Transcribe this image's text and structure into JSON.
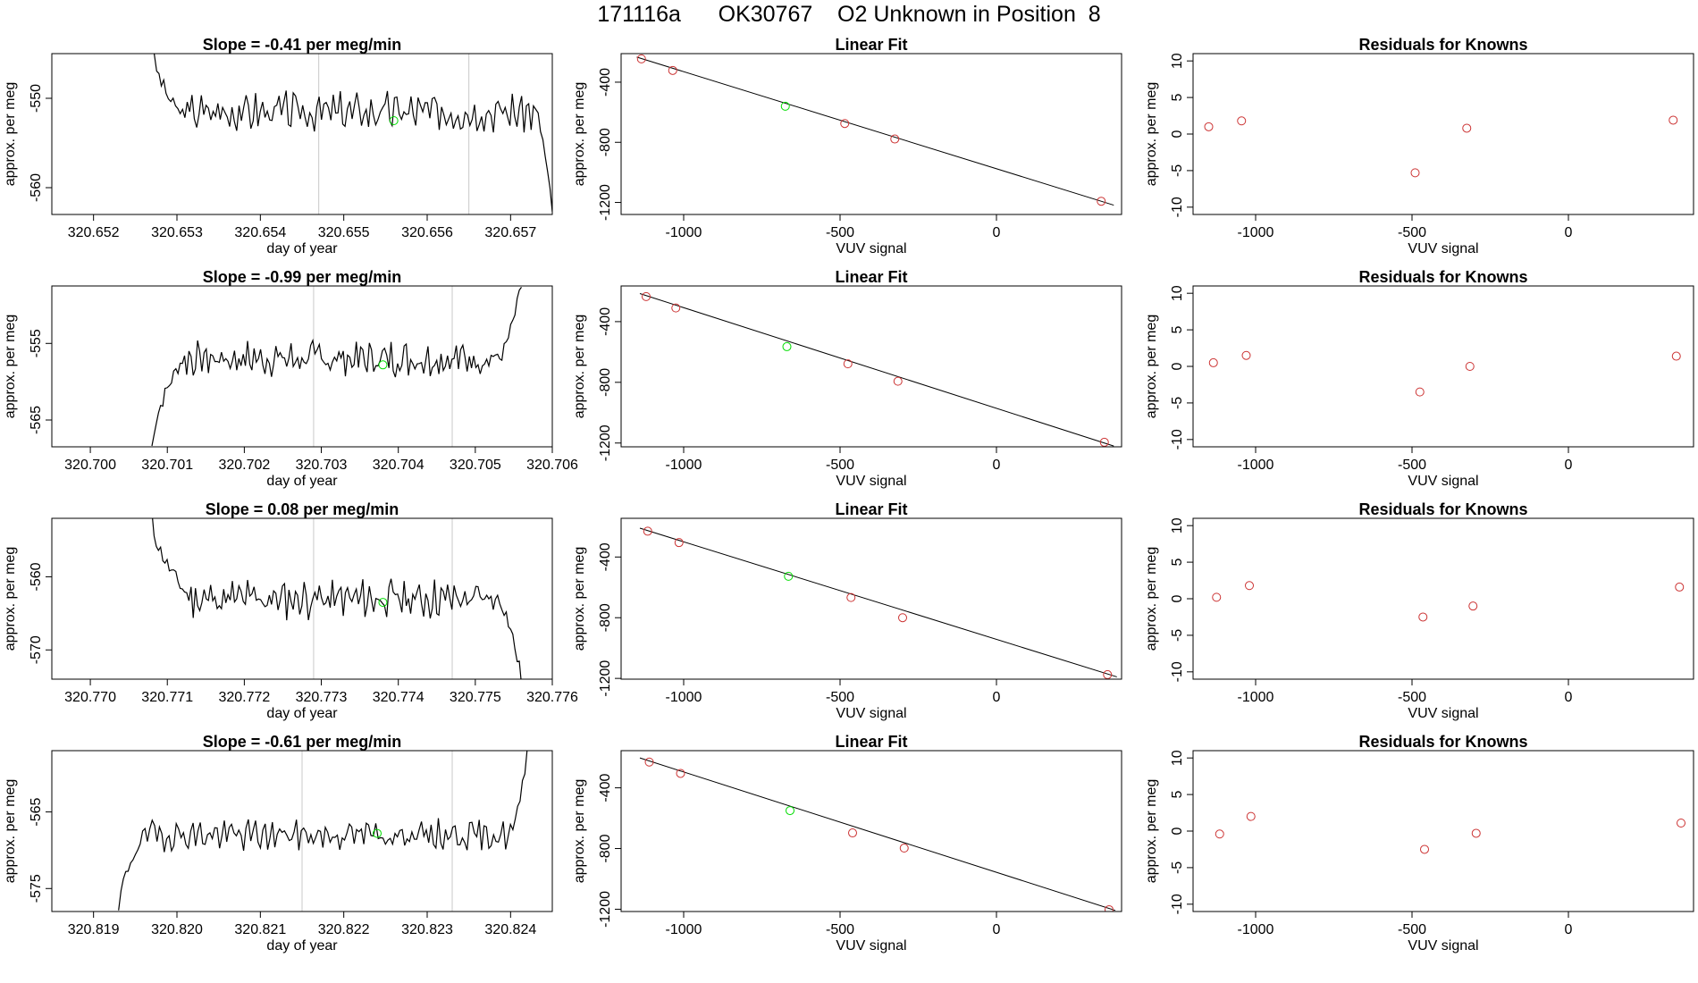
{
  "page": {
    "title": "171116a      OK30767    O2 Unknown in Position  8"
  },
  "colors": {
    "trace": "#000000",
    "unknown": "#00dd00",
    "known": "#cc3333",
    "gridline": "#c8c8c8",
    "fitline": "#000000"
  },
  "chart_data": [
    {
      "type": "line",
      "row": 0,
      "title": "Slope =  -0.41  per meg/min",
      "xlabel": "day of year",
      "ylabel": "approx. per meg",
      "xlim": [
        320.6515,
        320.6575
      ],
      "ylim": [
        -563,
        -545
      ],
      "xticks": [
        320.652,
        320.653,
        320.654,
        320.655,
        320.656,
        320.657
      ],
      "xtick_labels": [
        "320.652",
        "320.653",
        "320.654",
        "320.655",
        "320.656",
        "320.657"
      ],
      "yticks": [
        -550,
        -560
      ],
      "ytick_labels": [
        "-550",
        "-560"
      ],
      "vlines": [
        320.6547,
        320.6565
      ],
      "unknown_point": [
        320.6556,
        -552.5
      ],
      "trace": {
        "start": 320.6527,
        "end": 320.6575,
        "rise_end": 320.653,
        "level": -551.5,
        "amplitude": 1.8,
        "seed": 3,
        "start_value": -544,
        "end_value": -563,
        "fall_start": 320.6573
      }
    },
    {
      "type": "line",
      "row": 1,
      "title": "Slope =  -0.99  per meg/min",
      "xlabel": "day of year",
      "ylabel": "approx. per meg",
      "xlim": [
        320.6995,
        320.706
      ],
      "ylim": [
        -568.5,
        -547.5
      ],
      "xticks": [
        320.7,
        320.701,
        320.702,
        320.703,
        320.704,
        320.705,
        320.706
      ],
      "xtick_labels": [
        "320.700",
        "320.701",
        "320.702",
        "320.703",
        "320.704",
        "320.705",
        "320.706"
      ],
      "yticks": [
        -555,
        -565
      ],
      "ytick_labels": [
        "-555",
        "-565"
      ],
      "vlines": [
        320.7029,
        320.7047
      ],
      "unknown_point": [
        320.7038,
        -557.8
      ],
      "trace": {
        "start": 320.7008,
        "end": 320.7056,
        "rise_end": 320.7012,
        "level": -557,
        "amplitude": 2.0,
        "seed": 7,
        "start_value": -568.5,
        "end_value": -547.5,
        "fall_start": 320.7053
      }
    },
    {
      "type": "line",
      "row": 2,
      "title": "Slope =  0.08  per meg/min",
      "xlabel": "day of year",
      "ylabel": "approx. per meg",
      "xlim": [
        320.7695,
        320.776
      ],
      "ylim": [
        -574,
        -552
      ],
      "xticks": [
        320.77,
        320.771,
        320.772,
        320.773,
        320.774,
        320.775,
        320.776
      ],
      "xtick_labels": [
        "320.770",
        "320.771",
        "320.772",
        "320.773",
        "320.774",
        "320.775",
        "320.776"
      ],
      "yticks": [
        -560,
        -570
      ],
      "ytick_labels": [
        "-560",
        "-570"
      ],
      "vlines": [
        320.7729,
        320.7747
      ],
      "unknown_point": [
        320.7738,
        -563.5
      ],
      "trace": {
        "start": 320.7708,
        "end": 320.7756,
        "rise_end": 320.7713,
        "level": -563,
        "amplitude": 2.2,
        "seed": 11,
        "start_value": -552,
        "end_value": -574,
        "fall_start": 320.7753
      }
    },
    {
      "type": "line",
      "row": 3,
      "title": "Slope =  -0.61  per meg/min",
      "xlabel": "day of year",
      "ylabel": "approx. per meg",
      "xlim": [
        320.8185,
        320.8245
      ],
      "ylim": [
        -578,
        -557
      ],
      "xticks": [
        320.819,
        320.82,
        320.821,
        320.822,
        320.823,
        320.824
      ],
      "xtick_labels": [
        "320.819",
        "320.820",
        "320.821",
        "320.822",
        "320.823",
        "320.824"
      ],
      "yticks": [
        -565,
        -575
      ],
      "ytick_labels": [
        "-565",
        "-575"
      ],
      "vlines": [
        320.8215,
        320.8233
      ],
      "unknown_point": [
        320.8224,
        -567.8
      ],
      "trace": {
        "start": 320.8193,
        "end": 320.8242,
        "rise_end": 320.8196,
        "level": -568,
        "amplitude": 1.6,
        "seed": 19,
        "start_value": -578,
        "end_value": -557,
        "fall_start": 320.824
      }
    },
    {
      "type": "scatter",
      "row": 0,
      "title": "Linear Fit",
      "xlabel": "VUV signal",
      "ylabel": "approx. per meg",
      "xlim": [
        -1200,
        400
      ],
      "ylim": [
        -1280,
        -210
      ],
      "xticks": [
        -1000,
        -500,
        0
      ],
      "xtick_labels": [
        "-1000",
        "-500",
        "0"
      ],
      "yticks": [
        -400,
        -800,
        -1200
      ],
      "ytick_labels": [
        "-400",
        "-800",
        "-1200"
      ],
      "known_points": [
        [
          -1135,
          -245
        ],
        [
          -1035,
          -322
        ],
        [
          -485,
          -675
        ],
        [
          -325,
          -778
        ],
        [
          335,
          -1192
        ]
      ],
      "unknown_point": [
        -675,
        -560
      ],
      "fit_line": [
        [
          -1150,
          -233
        ],
        [
          375,
          -1218
        ]
      ]
    },
    {
      "type": "scatter",
      "row": 1,
      "title": "Linear Fit",
      "xlabel": "VUV signal",
      "ylabel": "approx. per meg",
      "xlim": [
        -1200,
        400
      ],
      "ylim": [
        -1225,
        -165
      ],
      "xticks": [
        -1000,
        -500,
        0
      ],
      "xtick_labels": [
        "-1000",
        "-500",
        "0"
      ],
      "yticks": [
        -400,
        -800,
        -1200
      ],
      "ytick_labels": [
        "-400",
        "-800",
        "-1200"
      ],
      "known_points": [
        [
          -1120,
          -235
        ],
        [
          -1025,
          -310
        ],
        [
          -475,
          -678
        ],
        [
          -315,
          -793
        ],
        [
          345,
          -1195
        ]
      ],
      "unknown_point": [
        -670,
        -565
      ],
      "fit_line": [
        [
          -1140,
          -215
        ],
        [
          375,
          -1220
        ]
      ]
    },
    {
      "type": "scatter",
      "row": 2,
      "title": "Linear Fit",
      "xlabel": "VUV signal",
      "ylabel": "approx. per meg",
      "xlim": [
        -1200,
        400
      ],
      "ylim": [
        -1205,
        -145
      ],
      "xticks": [
        -1000,
        -500,
        0
      ],
      "xtick_labels": [
        "-1000",
        "-500",
        "0"
      ],
      "yticks": [
        -400,
        -800,
        -1200
      ],
      "ytick_labels": [
        "-400",
        "-800",
        "-1200"
      ],
      "known_points": [
        [
          -1115,
          -230
        ],
        [
          -1015,
          -305
        ],
        [
          -465,
          -667
        ],
        [
          -300,
          -800
        ],
        [
          355,
          -1175
        ]
      ],
      "unknown_point": [
        -665,
        -527
      ],
      "fit_line": [
        [
          -1140,
          -210
        ],
        [
          385,
          -1190
        ]
      ]
    },
    {
      "type": "scatter",
      "row": 3,
      "title": "Linear Fit",
      "xlabel": "VUV signal",
      "ylabel": "approx. per meg",
      "xlim": [
        -1200,
        400
      ],
      "ylim": [
        -1215,
        -155
      ],
      "xticks": [
        -1000,
        -500,
        0
      ],
      "xtick_labels": [
        "-1000",
        "-500",
        "0"
      ],
      "yticks": [
        -400,
        -800,
        -1200
      ],
      "ytick_labels": [
        "-400",
        "-800",
        "-1200"
      ],
      "known_points": [
        [
          -1110,
          -230
        ],
        [
          -1010,
          -305
        ],
        [
          -460,
          -697
        ],
        [
          -295,
          -797
        ],
        [
          360,
          -1203
        ]
      ],
      "unknown_point": [
        -660,
        -550
      ],
      "fit_line": [
        [
          -1140,
          -203
        ],
        [
          380,
          -1208
        ]
      ]
    },
    {
      "type": "scatter",
      "row": 0,
      "title": "Residuals for Knowns",
      "xlabel": "VUV signal",
      "ylabel": "approx. per meg",
      "xlim": [
        -1200,
        400
      ],
      "ylim": [
        -11,
        11
      ],
      "xticks": [
        -1000,
        -500,
        0
      ],
      "xtick_labels": [
        "-1000",
        "-500",
        "0"
      ],
      "yticks": [
        10,
        5,
        0,
        -5,
        -10
      ],
      "ytick_labels": [
        "10",
        "5",
        "0",
        "-5",
        "-10"
      ],
      "points": [
        [
          -1150,
          1.0
        ],
        [
          -1045,
          1.8
        ],
        [
          -490,
          -5.3
        ],
        [
          -325,
          0.8
        ],
        [
          335,
          1.9
        ]
      ]
    },
    {
      "type": "scatter",
      "row": 1,
      "title": "Residuals for Knowns",
      "xlabel": "VUV signal",
      "ylabel": "approx. per meg",
      "xlim": [
        -1200,
        400
      ],
      "ylim": [
        -11,
        11
      ],
      "xticks": [
        -1000,
        -500,
        0
      ],
      "xtick_labels": [
        "-1000",
        "-500",
        "0"
      ],
      "yticks": [
        10,
        5,
        0,
        -5,
        -10
      ],
      "ytick_labels": [
        "10",
        "5",
        "0",
        "-5",
        "-10"
      ],
      "points": [
        [
          -1135,
          0.5
        ],
        [
          -1030,
          1.5
        ],
        [
          -475,
          -3.5
        ],
        [
          -315,
          0.0
        ],
        [
          345,
          1.4
        ]
      ]
    },
    {
      "type": "scatter",
      "row": 2,
      "title": "Residuals for Knowns",
      "xlabel": "VUV signal",
      "ylabel": "approx. per meg",
      "xlim": [
        -1200,
        400
      ],
      "ylim": [
        -11,
        11
      ],
      "xticks": [
        -1000,
        -500,
        0
      ],
      "xtick_labels": [
        "-1000",
        "-500",
        "0"
      ],
      "yticks": [
        10,
        5,
        0,
        -5,
        -10
      ],
      "ytick_labels": [
        "10",
        "5",
        "0",
        "-5",
        "-10"
      ],
      "points": [
        [
          -1125,
          0.2
        ],
        [
          -1020,
          1.8
        ],
        [
          -465,
          -2.5
        ],
        [
          -305,
          -1.0
        ],
        [
          355,
          1.6
        ]
      ]
    },
    {
      "type": "scatter",
      "row": 3,
      "title": "Residuals for Knowns",
      "xlabel": "VUV signal",
      "ylabel": "approx. per meg",
      "xlim": [
        -1200,
        400
      ],
      "ylim": [
        -11,
        11
      ],
      "xticks": [
        -1000,
        -500,
        0
      ],
      "xtick_labels": [
        "-1000",
        "-500",
        "0"
      ],
      "yticks": [
        10,
        5,
        0,
        -5,
        -10
      ],
      "ytick_labels": [
        "10",
        "5",
        "0",
        "-5",
        "-10"
      ],
      "points": [
        [
          -1115,
          -0.4
        ],
        [
          -1015,
          2.0
        ],
        [
          -460,
          -2.5
        ],
        [
          -295,
          -0.3
        ],
        [
          360,
          1.1
        ]
      ]
    }
  ]
}
